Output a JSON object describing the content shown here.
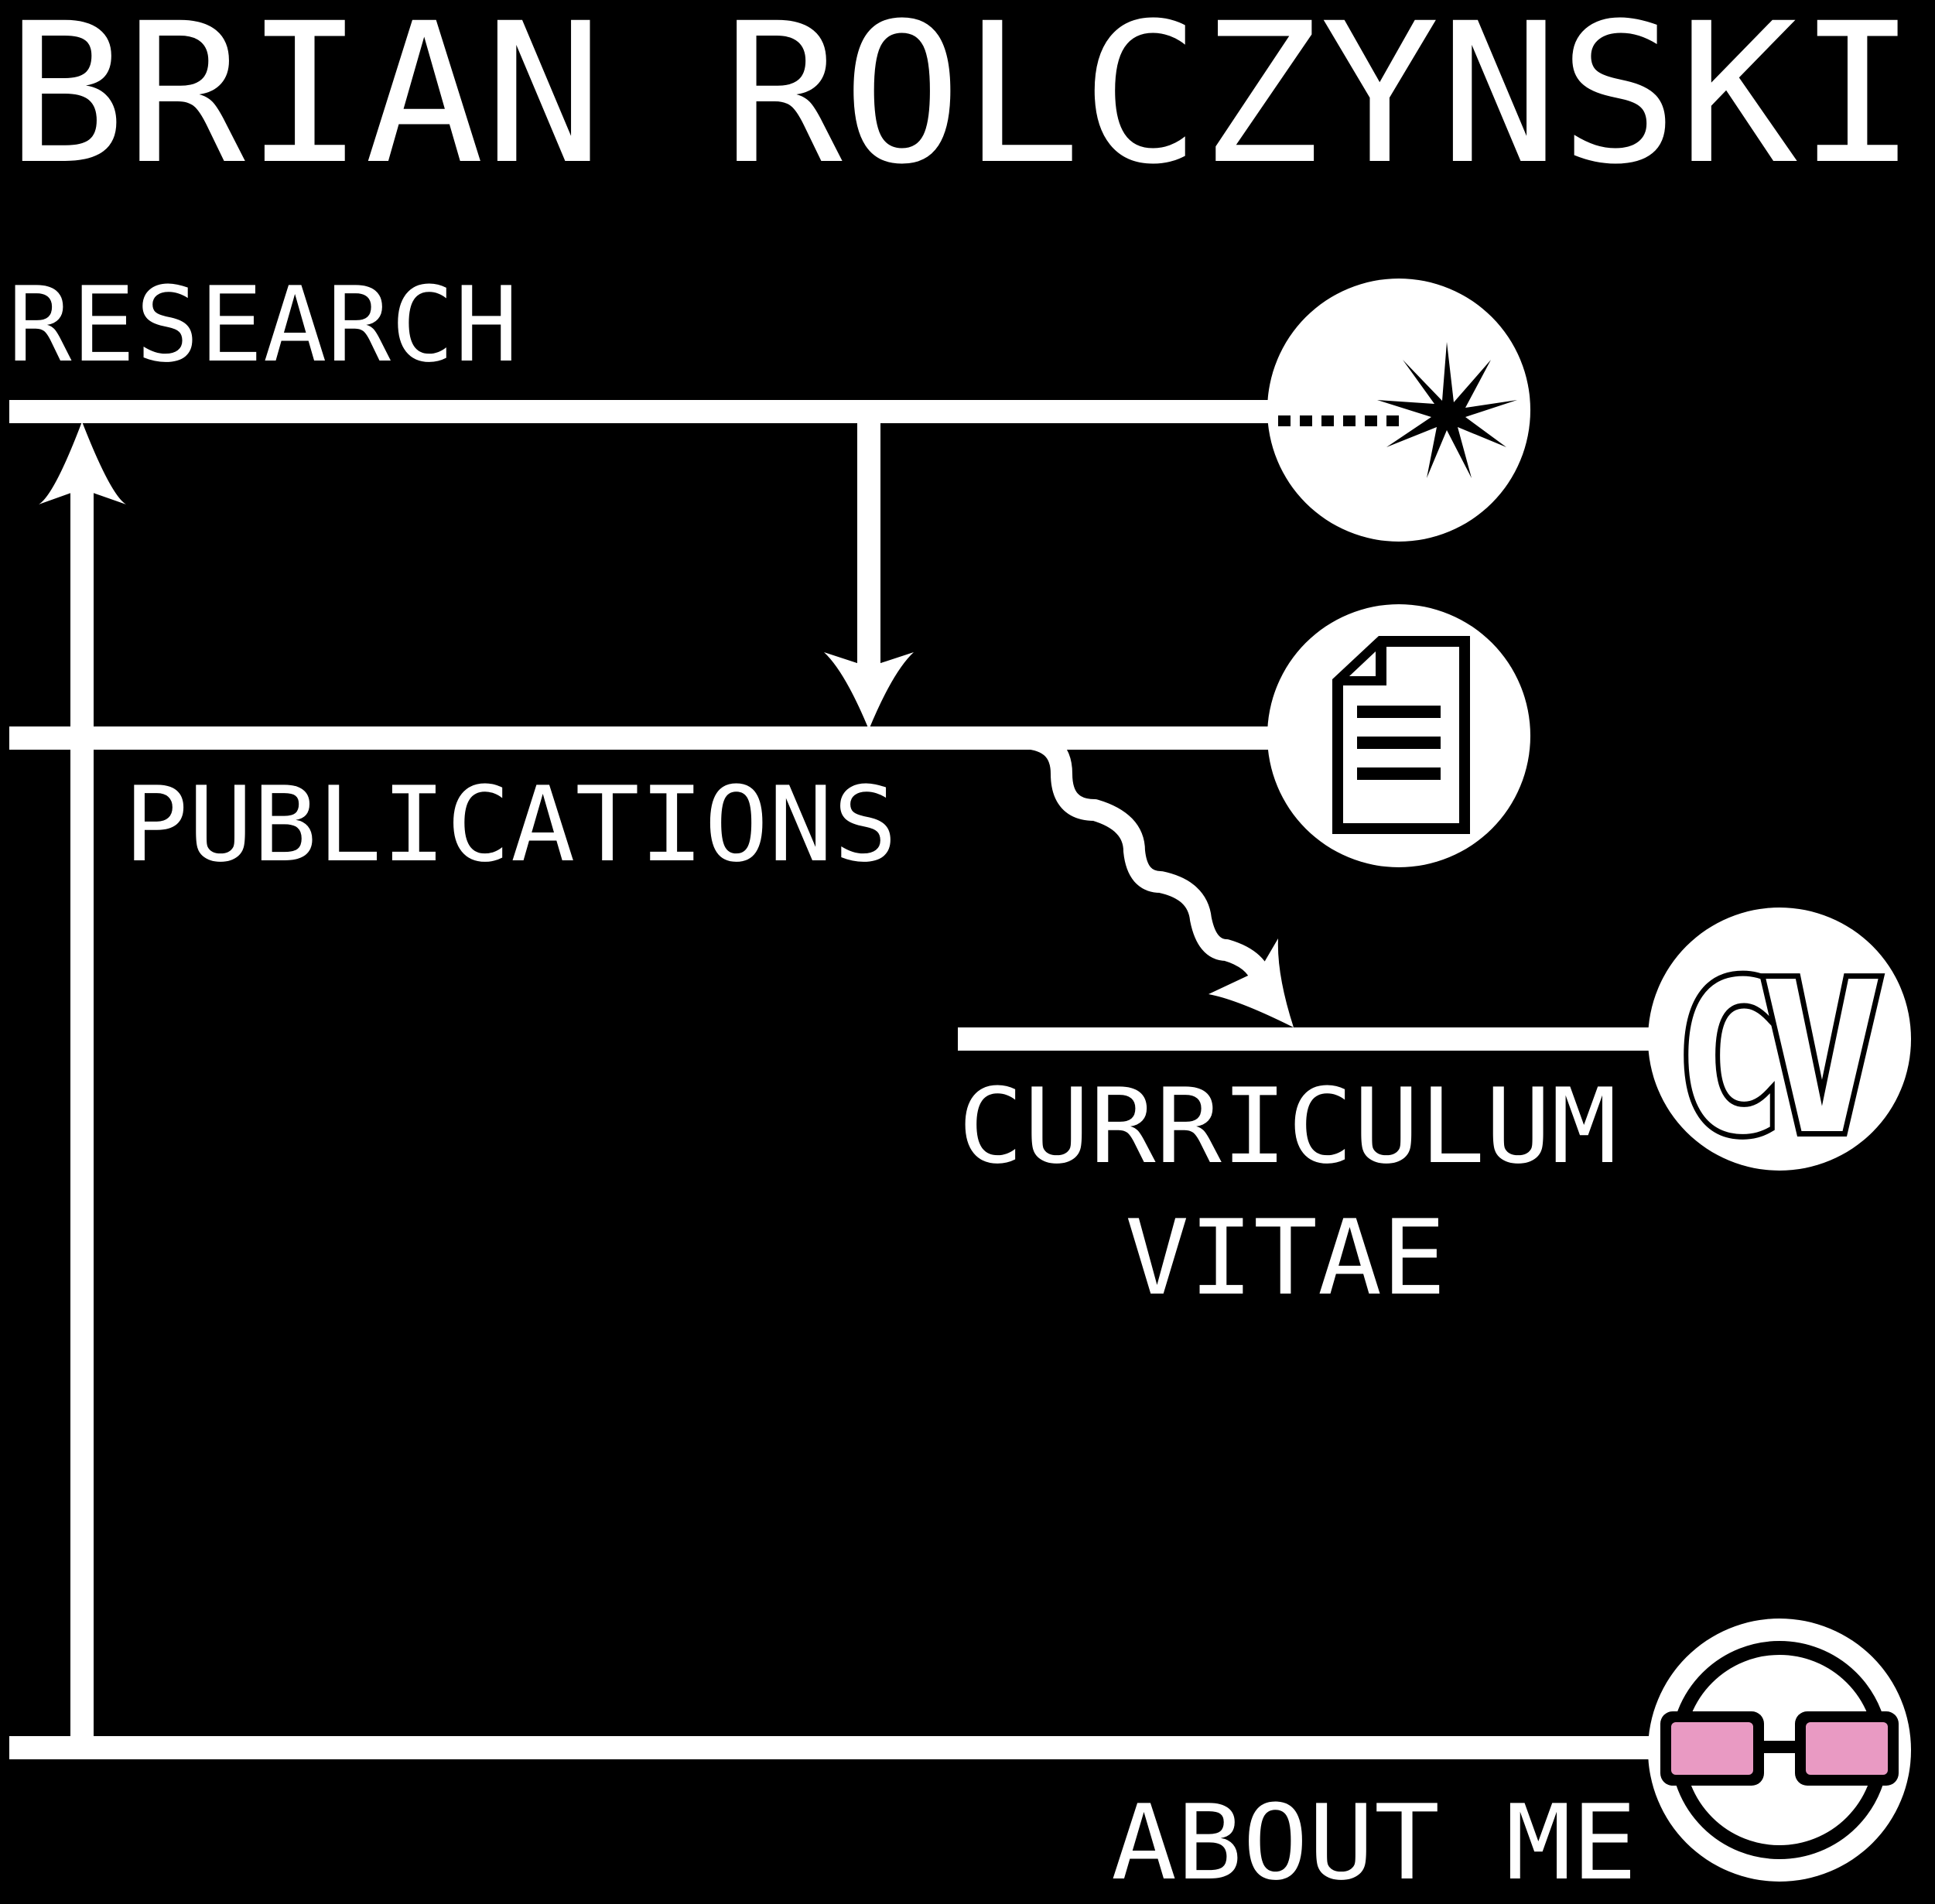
{
  "site": {
    "title": "BRIAN ROLCZYNSKI"
  },
  "nav": {
    "research": {
      "label": "RESEARCH",
      "icon": "laser-burst-icon"
    },
    "publications": {
      "label": "PUBLICATIONS",
      "icon": "document-icon"
    },
    "cv": {
      "label_line1": "CURRICULUM",
      "label_line2": "VITAE",
      "icon": "cv-icon",
      "icon_text_c": "C",
      "icon_text_v": "V"
    },
    "about": {
      "label": "ABOUT ME",
      "icon": "glasses-icon"
    }
  },
  "colors": {
    "background": "#000000",
    "foreground": "#ffffff",
    "glasses_lens": "#e99ac3"
  }
}
